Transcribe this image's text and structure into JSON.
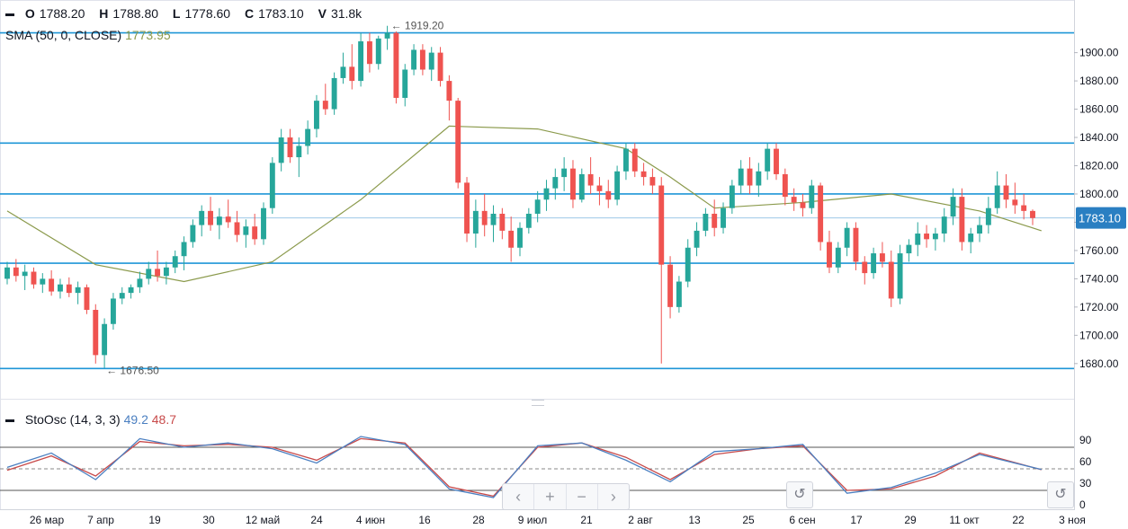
{
  "legend": {
    "ohlc": {
      "open_label": "O",
      "open": "1788.20",
      "high_label": "H",
      "high": "1788.80",
      "low_label": "L",
      "low": "1778.60",
      "close_label": "C",
      "close": "1783.10",
      "volume_label": "V",
      "volume": "31.8k"
    },
    "sma": {
      "label": "SMA (50, 0, CLOSE)",
      "value": "1773.95"
    },
    "sto": {
      "label": "StoOsc (14, 3, 3)",
      "k": "49.2",
      "d": "48.7"
    }
  },
  "annotations": {
    "high": "1919.20",
    "low": "1676.50",
    "last_price": "1783.10"
  },
  "colors": {
    "up": "#26a69a",
    "down": "#ef5350",
    "sma": "#8b9a4c",
    "level": "#1e96d7",
    "k_line": "#4a7fc1",
    "d_line": "#c84a4a",
    "price_tag": "#2a7fc2"
  },
  "nav": {
    "left": "‹",
    "zoom_in": "+",
    "zoom_out": "−",
    "right": "›",
    "reset": "↺"
  },
  "chart_data": {
    "type": "candlestick",
    "price_axis": {
      "ticks": [
        1680,
        1700,
        1720,
        1740,
        1760,
        1780,
        1800,
        1820,
        1840,
        1860,
        1880,
        1900
      ],
      "range": [
        1657,
        1922
      ]
    },
    "x_tick_labels": [
      "26 мар",
      "7 апр",
      "19",
      "30",
      "12 май",
      "24",
      "4 июн",
      "16",
      "28",
      "9 июл",
      "21",
      "2 авг",
      "13",
      "25",
      "6 сен",
      "17",
      "29",
      "11 окт",
      "22",
      "3 ноя"
    ],
    "horizontal_levels": [
      1676.5,
      1751,
      1800,
      1836,
      1914
    ],
    "last_price_line": 1783.1,
    "extremes": {
      "high": 1919.2,
      "low": 1676.5
    },
    "candles": [
      [
        1740,
        1752,
        1736,
        1748
      ],
      [
        1748,
        1754,
        1738,
        1742
      ],
      [
        1742,
        1750,
        1732,
        1745
      ],
      [
        1745,
        1748,
        1733,
        1736
      ],
      [
        1736,
        1744,
        1730,
        1740
      ],
      [
        1740,
        1746,
        1728,
        1731
      ],
      [
        1731,
        1740,
        1726,
        1736
      ],
      [
        1736,
        1741,
        1727,
        1730
      ],
      [
        1730,
        1738,
        1722,
        1734
      ],
      [
        1734,
        1736,
        1715,
        1718
      ],
      [
        1718,
        1722,
        1680,
        1686
      ],
      [
        1686,
        1712,
        1677,
        1708
      ],
      [
        1708,
        1730,
        1704,
        1726
      ],
      [
        1726,
        1734,
        1722,
        1730
      ],
      [
        1730,
        1736,
        1726,
        1734
      ],
      [
        1734,
        1745,
        1730,
        1740
      ],
      [
        1740,
        1752,
        1736,
        1747
      ],
      [
        1747,
        1760,
        1738,
        1742
      ],
      [
        1742,
        1752,
        1736,
        1748
      ],
      [
        1748,
        1760,
        1744,
        1756
      ],
      [
        1756,
        1770,
        1746,
        1766
      ],
      [
        1766,
        1782,
        1762,
        1778
      ],
      [
        1778,
        1792,
        1770,
        1788
      ],
      [
        1788,
        1798,
        1774,
        1778
      ],
      [
        1778,
        1790,
        1768,
        1784
      ],
      [
        1784,
        1796,
        1776,
        1780
      ],
      [
        1780,
        1788,
        1766,
        1771
      ],
      [
        1771,
        1782,
        1762,
        1777
      ],
      [
        1777,
        1786,
        1764,
        1768
      ],
      [
        1768,
        1794,
        1764,
        1790
      ],
      [
        1790,
        1826,
        1786,
        1822
      ],
      [
        1822,
        1846,
        1816,
        1840
      ],
      [
        1840,
        1846,
        1822,
        1826
      ],
      [
        1826,
        1840,
        1812,
        1834
      ],
      [
        1834,
        1852,
        1828,
        1846
      ],
      [
        1846,
        1870,
        1840,
        1866
      ],
      [
        1866,
        1878,
        1856,
        1860
      ],
      [
        1860,
        1886,
        1856,
        1882
      ],
      [
        1882,
        1900,
        1878,
        1890
      ],
      [
        1890,
        1906,
        1874,
        1880
      ],
      [
        1880,
        1914,
        1876,
        1908
      ],
      [
        1908,
        1914,
        1886,
        1892
      ],
      [
        1892,
        1912,
        1888,
        1910
      ],
      [
        1910,
        1919,
        1902,
        1914
      ],
      [
        1914,
        1915,
        1864,
        1868
      ],
      [
        1868,
        1892,
        1862,
        1888
      ],
      [
        1888,
        1906,
        1884,
        1902
      ],
      [
        1902,
        1906,
        1884,
        1888
      ],
      [
        1888,
        1904,
        1880,
        1900
      ],
      [
        1900,
        1904,
        1876,
        1880
      ],
      [
        1880,
        1884,
        1852,
        1866
      ],
      [
        1866,
        1868,
        1804,
        1808
      ],
      [
        1808,
        1812,
        1766,
        1772
      ],
      [
        1772,
        1796,
        1762,
        1788
      ],
      [
        1788,
        1800,
        1770,
        1778
      ],
      [
        1778,
        1792,
        1766,
        1786
      ],
      [
        1786,
        1790,
        1768,
        1774
      ],
      [
        1774,
        1784,
        1752,
        1762
      ],
      [
        1762,
        1780,
        1756,
        1776
      ],
      [
        1776,
        1790,
        1772,
        1786
      ],
      [
        1786,
        1802,
        1780,
        1796
      ],
      [
        1796,
        1810,
        1788,
        1804
      ],
      [
        1804,
        1818,
        1796,
        1812
      ],
      [
        1812,
        1826,
        1802,
        1818
      ],
      [
        1818,
        1824,
        1790,
        1796
      ],
      [
        1796,
        1818,
        1794,
        1814
      ],
      [
        1814,
        1826,
        1800,
        1806
      ],
      [
        1806,
        1812,
        1792,
        1802
      ],
      [
        1802,
        1810,
        1790,
        1796
      ],
      [
        1796,
        1820,
        1792,
        1816
      ],
      [
        1816,
        1836,
        1810,
        1832
      ],
      [
        1832,
        1836,
        1812,
        1816
      ],
      [
        1816,
        1822,
        1806,
        1812
      ],
      [
        1812,
        1818,
        1800,
        1806
      ],
      [
        1806,
        1812,
        1680,
        1750
      ],
      [
        1750,
        1756,
        1712,
        1720
      ],
      [
        1720,
        1742,
        1716,
        1738
      ],
      [
        1738,
        1768,
        1734,
        1762
      ],
      [
        1762,
        1780,
        1756,
        1774
      ],
      [
        1774,
        1790,
        1770,
        1786
      ],
      [
        1786,
        1796,
        1770,
        1776
      ],
      [
        1776,
        1794,
        1772,
        1790
      ],
      [
        1790,
        1810,
        1786,
        1806
      ],
      [
        1806,
        1824,
        1800,
        1818
      ],
      [
        1818,
        1826,
        1800,
        1806
      ],
      [
        1806,
        1822,
        1798,
        1816
      ],
      [
        1816,
        1836,
        1810,
        1832
      ],
      [
        1832,
        1836,
        1810,
        1814
      ],
      [
        1814,
        1818,
        1792,
        1798
      ],
      [
        1798,
        1804,
        1788,
        1794
      ],
      [
        1794,
        1800,
        1784,
        1790
      ],
      [
        1790,
        1810,
        1786,
        1806
      ],
      [
        1806,
        1808,
        1760,
        1766
      ],
      [
        1766,
        1774,
        1744,
        1748
      ],
      [
        1748,
        1766,
        1744,
        1762
      ],
      [
        1762,
        1780,
        1756,
        1776
      ],
      [
        1776,
        1780,
        1746,
        1752
      ],
      [
        1752,
        1756,
        1736,
        1744
      ],
      [
        1744,
        1762,
        1740,
        1758
      ],
      [
        1758,
        1766,
        1748,
        1752
      ],
      [
        1752,
        1760,
        1720,
        1726
      ],
      [
        1726,
        1764,
        1722,
        1758
      ],
      [
        1758,
        1768,
        1752,
        1764
      ],
      [
        1764,
        1780,
        1756,
        1772
      ],
      [
        1772,
        1778,
        1762,
        1768
      ],
      [
        1768,
        1776,
        1760,
        1772
      ],
      [
        1772,
        1790,
        1766,
        1784
      ],
      [
        1784,
        1804,
        1778,
        1798
      ],
      [
        1798,
        1804,
        1760,
        1766
      ],
      [
        1766,
        1776,
        1758,
        1772
      ],
      [
        1772,
        1784,
        1766,
        1778
      ],
      [
        1778,
        1798,
        1772,
        1790
      ],
      [
        1790,
        1816,
        1786,
        1806
      ],
      [
        1806,
        1814,
        1790,
        1796
      ],
      [
        1796,
        1808,
        1786,
        1792
      ],
      [
        1792,
        1800,
        1782,
        1788
      ],
      [
        1788,
        1789,
        1778,
        1783
      ]
    ],
    "sma": {
      "label": "SMA (50, 0, CLOSE)",
      "x": [
        0,
        10,
        20,
        30,
        40,
        50,
        60,
        70,
        75,
        80,
        90,
        100,
        110,
        117
      ],
      "values": [
        1788,
        1750,
        1738,
        1752,
        1796,
        1848,
        1846,
        1832,
        1812,
        1790,
        1794,
        1800,
        1788,
        1774
      ]
    },
    "stoch": {
      "axis_ticks": [
        0,
        30,
        60,
        90
      ],
      "bands": [
        20,
        50,
        80
      ],
      "k_value": "49.2",
      "d_value": "48.7",
      "x": [
        0,
        5,
        10,
        15,
        20,
        25,
        30,
        35,
        40,
        45,
        50,
        55,
        60,
        65,
        70,
        75,
        80,
        85,
        90,
        95,
        100,
        105,
        110,
        117
      ],
      "k": [
        52,
        72,
        35,
        92,
        80,
        86,
        78,
        58,
        95,
        84,
        22,
        10,
        82,
        86,
        62,
        32,
        74,
        78,
        84,
        16,
        24,
        44,
        70,
        49
      ],
      "d": [
        48,
        68,
        40,
        88,
        82,
        84,
        80,
        62,
        92,
        86,
        25,
        12,
        80,
        86,
        66,
        35,
        70,
        78,
        82,
        20,
        22,
        40,
        72,
        48.7
      ]
    }
  }
}
